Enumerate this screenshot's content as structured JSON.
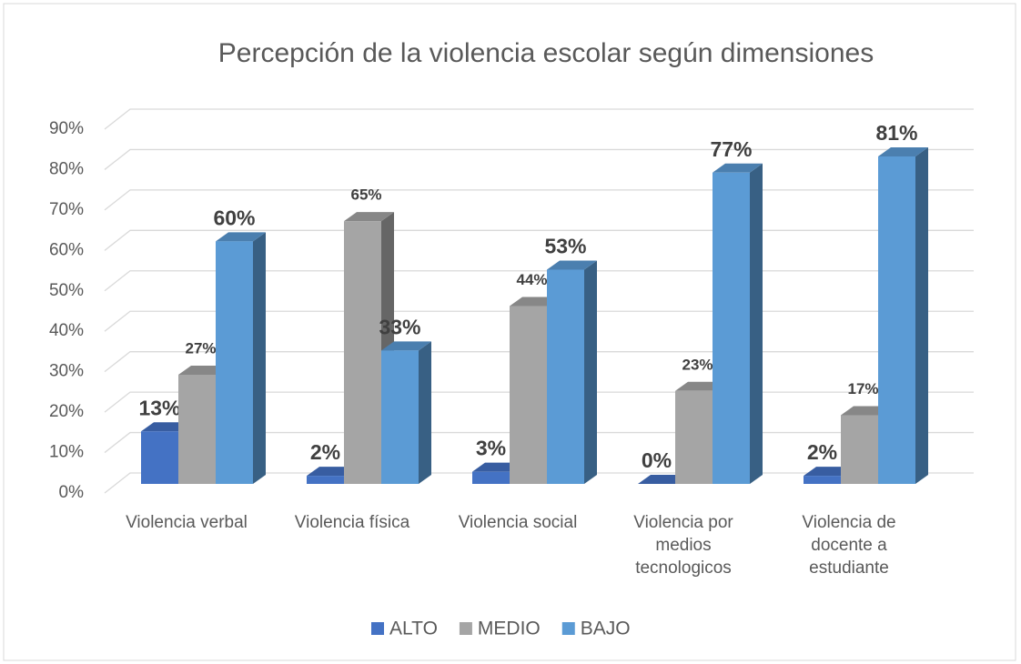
{
  "chart_data": {
    "type": "bar3d",
    "title": "Percepción de la violencia escolar según dimensiones",
    "categories": [
      "Violencia verbal",
      "Violencia física",
      "Violencia social",
      "Violencia por medios tecnologicos",
      "Violencia de docente a estudiante"
    ],
    "series": [
      {
        "name": "ALTO",
        "color": "#4472c4",
        "values": [
          13,
          2,
          3,
          0,
          2
        ],
        "value_labels": [
          "13%",
          "2%",
          "3%",
          "0%",
          "2%"
        ]
      },
      {
        "name": "MEDIO",
        "color": "#a5a5a5",
        "values": [
          27,
          65,
          44,
          23,
          17
        ],
        "value_labels": [
          "27%",
          "65%",
          "44%",
          "23%",
          "17%"
        ]
      },
      {
        "name": "BAJO",
        "color": "#5b9bd5",
        "values": [
          60,
          33,
          53,
          77,
          81
        ],
        "value_labels": [
          "60%",
          "33%",
          "53%",
          "77%",
          "81%"
        ]
      }
    ],
    "ylim": [
      0,
      90
    ],
    "yticks": [
      {
        "value": 0,
        "label": "0%"
      },
      {
        "value": 10,
        "label": "10%"
      },
      {
        "value": 20,
        "label": "20%"
      },
      {
        "value": 30,
        "label": "30%"
      },
      {
        "value": 40,
        "label": "40%"
      },
      {
        "value": 50,
        "label": "50%"
      },
      {
        "value": 60,
        "label": "60%"
      },
      {
        "value": 70,
        "label": "70%"
      },
      {
        "value": 80,
        "label": "80%"
      },
      {
        "value": 90,
        "label": "90%"
      }
    ],
    "grid": true,
    "legend": "bottom"
  }
}
